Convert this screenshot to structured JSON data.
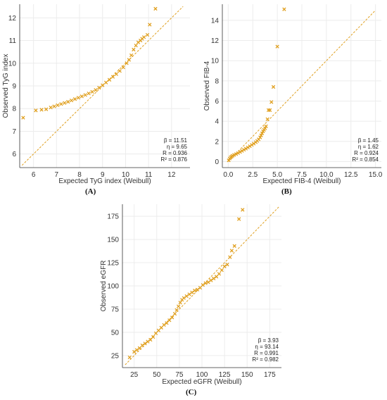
{
  "panel_labels": [
    "(A)",
    "(B)",
    "(C)"
  ],
  "colors": {
    "marker": "#E0A020",
    "reference_line": "#E0A020",
    "grid": "#ECECEC",
    "axis": "#333333"
  },
  "chart_data": [
    {
      "type": "scatter",
      "subtype": "weibull-qq",
      "xlabel": "Expected TyG index (Weibull)",
      "ylabel": "Observed TyG index",
      "xlim": [
        5.4,
        12.8
      ],
      "ylim": [
        5.4,
        12.6
      ],
      "xticks": [
        6,
        7,
        8,
        9,
        10,
        11,
        12
      ],
      "yticks": [
        6,
        7,
        8,
        9,
        10,
        11,
        12
      ],
      "grid": true,
      "reference_line": [
        [
          5.5,
          5.5
        ],
        [
          12.5,
          12.5
        ]
      ],
      "stats": [
        "β = 11.51",
        "η = 9.65",
        "R = 0.936",
        "R² = 0.876"
      ],
      "stats_position": "bottom-right",
      "points": [
        [
          5.55,
          7.6
        ],
        [
          6.1,
          7.92
        ],
        [
          6.35,
          7.95
        ],
        [
          6.55,
          7.97
        ],
        [
          6.75,
          8.05
        ],
        [
          6.9,
          8.1
        ],
        [
          7.05,
          8.15
        ],
        [
          7.2,
          8.2
        ],
        [
          7.35,
          8.25
        ],
        [
          7.5,
          8.3
        ],
        [
          7.65,
          8.36
        ],
        [
          7.8,
          8.42
        ],
        [
          7.95,
          8.48
        ],
        [
          8.1,
          8.54
        ],
        [
          8.25,
          8.6
        ],
        [
          8.4,
          8.67
        ],
        [
          8.55,
          8.74
        ],
        [
          8.7,
          8.82
        ],
        [
          8.85,
          8.92
        ],
        [
          9.0,
          9.03
        ],
        [
          9.15,
          9.15
        ],
        [
          9.3,
          9.27
        ],
        [
          9.45,
          9.4
        ],
        [
          9.6,
          9.52
        ],
        [
          9.75,
          9.66
        ],
        [
          9.9,
          9.82
        ],
        [
          10.05,
          10.0
        ],
        [
          10.15,
          10.15
        ],
        [
          10.25,
          10.35
        ],
        [
          10.35,
          10.6
        ],
        [
          10.45,
          10.78
        ],
        [
          10.55,
          10.92
        ],
        [
          10.65,
          11.0
        ],
        [
          10.72,
          11.08
        ],
        [
          10.8,
          11.15
        ],
        [
          10.95,
          11.25
        ],
        [
          11.05,
          11.7
        ],
        [
          11.3,
          12.4
        ]
      ]
    },
    {
      "type": "scatter",
      "subtype": "weibull-qq",
      "xlabel": "Expected FIB-4 (Weibull)",
      "ylabel": "Observed FIB-4",
      "xlim": [
        -0.6,
        15.6
      ],
      "ylim": [
        -0.6,
        15.6
      ],
      "xticks": [
        0.0,
        2.5,
        5.0,
        7.5,
        10.0,
        12.5,
        15.0
      ],
      "yticks": [
        0,
        2,
        4,
        6,
        8,
        10,
        12,
        14
      ],
      "grid": true,
      "reference_line": [
        [
          0,
          0
        ],
        [
          15,
          15
        ]
      ],
      "stats": [
        "β = 1.45",
        "η = 1.62",
        "R = 0.924",
        "R² = 0.854"
      ],
      "stats_position": "bottom-right",
      "points": [
        [
          0.05,
          0.12
        ],
        [
          0.15,
          0.3
        ],
        [
          0.25,
          0.42
        ],
        [
          0.35,
          0.5
        ],
        [
          0.45,
          0.58
        ],
        [
          0.6,
          0.66
        ],
        [
          0.8,
          0.74
        ],
        [
          1.0,
          0.84
        ],
        [
          1.2,
          0.95
        ],
        [
          1.4,
          1.06
        ],
        [
          1.6,
          1.17
        ],
        [
          1.8,
          1.28
        ],
        [
          2.0,
          1.4
        ],
        [
          2.2,
          1.52
        ],
        [
          2.4,
          1.65
        ],
        [
          2.6,
          1.78
        ],
        [
          2.8,
          1.92
        ],
        [
          2.95,
          2.05
        ],
        [
          3.1,
          2.2
        ],
        [
          3.25,
          2.4
        ],
        [
          3.35,
          2.6
        ],
        [
          3.45,
          2.8
        ],
        [
          3.55,
          3.0
        ],
        [
          3.65,
          3.15
        ],
        [
          3.75,
          3.3
        ],
        [
          3.85,
          3.5
        ],
        [
          4.0,
          4.2
        ],
        [
          4.1,
          5.1
        ],
        [
          4.25,
          5.1
        ],
        [
          4.4,
          5.9
        ],
        [
          4.6,
          7.4
        ],
        [
          5.0,
          11.4
        ],
        [
          5.7,
          15.1
        ]
      ]
    },
    {
      "type": "scatter",
      "subtype": "weibull-qq",
      "xlabel": "Expected eGFR (Weibull)",
      "ylabel": "Observed eGFR",
      "xlim": [
        12,
        188
      ],
      "ylim": [
        12,
        188
      ],
      "xticks": [
        25,
        50,
        75,
        100,
        125,
        150,
        175
      ],
      "yticks": [
        25,
        50,
        75,
        100,
        125,
        150,
        175
      ],
      "grid": true,
      "reference_line": [
        [
          15,
          15
        ],
        [
          185,
          185
        ]
      ],
      "stats": [
        "β = 3.93",
        "η = 93.14",
        "R = 0.991",
        "R² = 0.982"
      ],
      "stats_position": "bottom-right",
      "points": [
        [
          20,
          23
        ],
        [
          25,
          29
        ],
        [
          28,
          31
        ],
        [
          31,
          33
        ],
        [
          34,
          36
        ],
        [
          37,
          38
        ],
        [
          40,
          40
        ],
        [
          43,
          42
        ],
        [
          46,
          45
        ],
        [
          49,
          49
        ],
        [
          52,
          52
        ],
        [
          55,
          55
        ],
        [
          58,
          58
        ],
        [
          61,
          60
        ],
        [
          64,
          63
        ],
        [
          67,
          66
        ],
        [
          70,
          70
        ],
        [
          72,
          74
        ],
        [
          74,
          78
        ],
        [
          76,
          82
        ],
        [
          78,
          85
        ],
        [
          80,
          87
        ],
        [
          83,
          89
        ],
        [
          86,
          91
        ],
        [
          89,
          93
        ],
        [
          92,
          95
        ],
        [
          95,
          96
        ],
        [
          98,
          98
        ],
        [
          101,
          101
        ],
        [
          104,
          103
        ],
        [
          107,
          104
        ],
        [
          110,
          106
        ],
        [
          113,
          108
        ],
        [
          116,
          110
        ],
        [
          119,
          113
        ],
        [
          122,
          117
        ],
        [
          125,
          121
        ],
        [
          128,
          123
        ],
        [
          131,
          131
        ],
        [
          133,
          138
        ],
        [
          136,
          143
        ],
        [
          141,
          172
        ],
        [
          145,
          182
        ]
      ]
    }
  ]
}
